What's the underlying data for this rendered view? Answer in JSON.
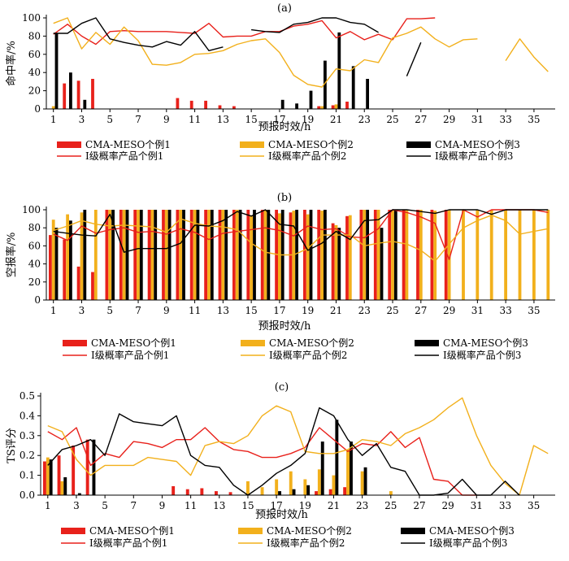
{
  "chart_data": [
    {
      "type": "bar",
      "title": "(a)",
      "xlabel": "预报时效/h",
      "ylabel": "命中率/%",
      "ylim": [
        0,
        100
      ],
      "yticks": [
        0,
        20,
        40,
        60,
        80,
        100
      ],
      "xticks": [
        1,
        3,
        5,
        7,
        9,
        11,
        13,
        15,
        17,
        19,
        21,
        23,
        25,
        27,
        29,
        31,
        33,
        35
      ],
      "x": [
        1,
        2,
        3,
        4,
        5,
        6,
        7,
        8,
        9,
        10,
        11,
        12,
        13,
        14,
        15,
        16,
        17,
        18,
        19,
        20,
        21,
        22,
        23,
        24,
        25,
        26,
        27,
        28,
        29,
        30,
        31,
        32,
        33,
        34,
        35,
        36
      ],
      "grid": false,
      "legend_position": "bottom",
      "bar_series": [
        {
          "name": "CMA-MESO个例1",
          "color": "#e8211b",
          "values": [
            null,
            28,
            31,
            33,
            null,
            null,
            null,
            null,
            null,
            12,
            9,
            9,
            4,
            3,
            null,
            null,
            null,
            null,
            null,
            3,
            4,
            8,
            null,
            null,
            null,
            null,
            null,
            null,
            null,
            null,
            null,
            null,
            null,
            null,
            null,
            null
          ]
        },
        {
          "name": "CMA-MESO个例2",
          "color": "#f2b01c",
          "values": [
            3,
            null,
            null,
            null,
            null,
            null,
            null,
            null,
            null,
            null,
            null,
            null,
            null,
            null,
            null,
            null,
            null,
            null,
            null,
            3,
            5,
            null,
            null,
            null,
            null,
            null,
            null,
            null,
            null,
            null,
            null,
            null,
            null,
            null,
            null,
            null
          ]
        },
        {
          "name": "CMA-MESO个例3",
          "color": "#000000",
          "values": [
            83,
            40,
            10,
            null,
            null,
            null,
            null,
            null,
            null,
            null,
            null,
            null,
            null,
            null,
            null,
            null,
            10,
            6,
            20,
            53,
            84,
            47,
            33,
            null,
            null,
            null,
            null,
            null,
            null,
            null,
            null,
            null,
            null,
            null,
            null,
            null
          ]
        }
      ],
      "line_series": [
        {
          "name": "I级概率产品个例1",
          "color": "#e8211b",
          "values": [
            82,
            93,
            80,
            71,
            85,
            86,
            85,
            85,
            85,
            84,
            83,
            94,
            79,
            80,
            80,
            85,
            85,
            91,
            93,
            97,
            78,
            85,
            76,
            82,
            76,
            99,
            99,
            100,
            null,
            null,
            null,
            null,
            null,
            null,
            null,
            null
          ]
        },
        {
          "name": "I级概率产品个例2",
          "color": "#f2b01c",
          "values": [
            94,
            100,
            66,
            84,
            71,
            90,
            75,
            49,
            48,
            51,
            60,
            61,
            64,
            71,
            75,
            77,
            62,
            37,
            27,
            24,
            44,
            42,
            54,
            51,
            78,
            83,
            90,
            77,
            68,
            76,
            77,
            null,
            53,
            77,
            57,
            41
          ]
        },
        {
          "name": "I级概率产品个例3",
          "color": "#000000",
          "values": [
            83,
            83,
            94,
            100,
            77,
            73,
            70,
            68,
            74,
            70,
            85,
            64,
            68,
            null,
            87,
            85,
            84,
            93,
            95,
            100,
            100,
            95,
            93,
            84,
            null,
            36,
            73,
            null,
            null,
            null,
            null,
            null,
            null,
            null,
            null,
            null
          ]
        }
      ]
    },
    {
      "type": "bar",
      "title": "(b)",
      "xlabel": "预报时效/h",
      "ylabel": "空报率/%",
      "ylim": [
        0,
        100
      ],
      "yticks": [
        0,
        20,
        40,
        60,
        80,
        100
      ],
      "xticks": [
        1,
        3,
        5,
        7,
        9,
        11,
        13,
        15,
        17,
        19,
        21,
        23,
        25,
        27,
        29,
        31,
        33,
        35
      ],
      "x": [
        1,
        2,
        3,
        4,
        5,
        6,
        7,
        8,
        9,
        10,
        11,
        12,
        13,
        14,
        15,
        16,
        17,
        18,
        19,
        20,
        21,
        22,
        23,
        24,
        25,
        26,
        27,
        28,
        29,
        30,
        31,
        32,
        33,
        34,
        35,
        36
      ],
      "grid": false,
      "legend_position": "bottom",
      "bar_series": [
        {
          "name": "CMA-MESO个例1",
          "color": "#e8211b",
          "values": [
            72,
            67,
            37,
            31,
            100,
            100,
            100,
            100,
            100,
            100,
            100,
            100,
            100,
            100,
            100,
            100,
            100,
            97,
            100,
            100,
            85,
            93,
            100,
            100,
            100,
            100,
            100,
            100,
            100,
            null,
            null,
            null,
            null,
            null,
            null,
            null
          ]
        },
        {
          "name": "CMA-MESO个例2",
          "color": "#f2b01c",
          "values": [
            89,
            95,
            97,
            100,
            100,
            100,
            100,
            100,
            100,
            100,
            100,
            100,
            100,
            100,
            94,
            100,
            96,
            99,
            95,
            99,
            83,
            94,
            100,
            100,
            100,
            100,
            100,
            99,
            100,
            100,
            100,
            100,
            100,
            100,
            100,
            100
          ]
        },
        {
          "name": "CMA-MESO个例3",
          "color": "#000000",
          "values": [
            80,
            88,
            100,
            null,
            100,
            100,
            100,
            100,
            100,
            100,
            100,
            100,
            100,
            100,
            100,
            100,
            100,
            100,
            100,
            100,
            80,
            null,
            100,
            80,
            100,
            null,
            null,
            null,
            null,
            null,
            null,
            null,
            null,
            null,
            null,
            null
          ]
        }
      ],
      "line_series": [
        {
          "name": "I级概率产品个例1",
          "color": "#e8211b",
          "values": [
            73,
            66,
            82,
            74,
            78,
            80,
            75,
            76,
            73,
            79,
            75,
            67,
            74,
            76,
            78,
            80,
            77,
            71,
            82,
            78,
            79,
            70,
            69,
            79,
            100,
            97,
            92,
            85,
            45,
            100,
            92,
            100,
            100,
            100,
            100,
            97
          ]
        },
        {
          "name": "I级概率产品个例2",
          "color": "#f2b01c",
          "values": [
            77,
            82,
            88,
            84,
            82,
            83,
            82,
            81,
            75,
            90,
            85,
            82,
            81,
            78,
            63,
            53,
            50,
            50,
            57,
            72,
            72,
            72,
            60,
            63,
            65,
            62,
            55,
            43,
            62,
            80,
            88,
            94,
            88,
            73,
            76,
            79
          ]
        },
        {
          "name": "I级概率产品个例3",
          "color": "#000000",
          "values": [
            76,
            74,
            72,
            71,
            95,
            53,
            57,
            57,
            57,
            63,
            83,
            82,
            88,
            98,
            93,
            100,
            84,
            82,
            55,
            63,
            76,
            67,
            88,
            89,
            100,
            100,
            98,
            96,
            100,
            100,
            100,
            95,
            100,
            100,
            100,
            100
          ]
        }
      ]
    },
    {
      "type": "bar",
      "title": "(c)",
      "xlabel": "预报时效/h",
      "ylabel": "TS评分",
      "ylim": [
        0,
        0.5
      ],
      "yticks": [
        0,
        0.1,
        0.2,
        0.3,
        0.4,
        0.5
      ],
      "xticks": [
        1,
        3,
        5,
        7,
        9,
        11,
        13,
        15,
        17,
        19,
        21,
        23,
        25,
        27,
        29,
        31,
        33,
        35
      ],
      "x": [
        1,
        2,
        3,
        4,
        5,
        6,
        7,
        8,
        9,
        10,
        11,
        12,
        13,
        14,
        15,
        16,
        17,
        18,
        19,
        20,
        21,
        22,
        23,
        24,
        25,
        26,
        27,
        28,
        29,
        30,
        31,
        32,
        33,
        34,
        35,
        36
      ],
      "grid": false,
      "legend_position": "bottom",
      "bar_series": [
        {
          "name": "CMA-MESO个例1",
          "color": "#e8211b",
          "values": [
            0.17,
            0.2,
            0.25,
            0.28,
            null,
            null,
            null,
            null,
            null,
            0.045,
            0.03,
            0.035,
            0.02,
            0.015,
            null,
            null,
            null,
            null,
            null,
            0.02,
            0.03,
            0.04,
            null,
            null,
            null,
            null,
            null,
            null,
            null,
            null,
            null,
            null,
            null,
            null,
            null,
            null
          ]
        },
        {
          "name": "CMA-MESO个例2",
          "color": "#f2b01c",
          "values": [
            0.19,
            0.07,
            null,
            null,
            null,
            null,
            null,
            null,
            null,
            null,
            null,
            null,
            null,
            null,
            0.07,
            0.04,
            0.08,
            0.12,
            0.08,
            0.13,
            0.1,
            0.23,
            0.12,
            null,
            0.02,
            null,
            null,
            null,
            null,
            null,
            null,
            null,
            null,
            null,
            null,
            null
          ]
        },
        {
          "name": "CMA-MESO个例3",
          "color": "#000000",
          "values": [
            0.18,
            0.09,
            0.01,
            0.28,
            null,
            null,
            null,
            null,
            null,
            null,
            null,
            null,
            null,
            null,
            null,
            null,
            0.02,
            0.03,
            0.05,
            0.27,
            0.38,
            0.27,
            0.14,
            null,
            null,
            null,
            null,
            null,
            null,
            null,
            null,
            null,
            null,
            null,
            null,
            null
          ]
        }
      ],
      "line_series": [
        {
          "name": "I级概率产品个例1",
          "color": "#e8211b",
          "values": [
            0.32,
            0.28,
            0.34,
            0.15,
            0.21,
            0.19,
            0.27,
            0.26,
            0.24,
            0.28,
            0.28,
            0.34,
            0.27,
            0.23,
            0.22,
            0.19,
            0.19,
            0.21,
            0.24,
            0.34,
            0.28,
            0.22,
            0.26,
            0.25,
            0.32,
            0.24,
            0.29,
            0.08,
            0.07,
            0.0,
            0.0,
            null,
            null,
            null,
            null,
            null
          ]
        },
        {
          "name": "I级概率产品个例2",
          "color": "#f2b01c",
          "values": [
            0.35,
            0.32,
            0.18,
            0.1,
            0.15,
            0.15,
            0.15,
            0.19,
            0.18,
            0.17,
            0.1,
            0.25,
            0.27,
            0.26,
            0.3,
            0.4,
            0.45,
            0.42,
            0.22,
            0.21,
            0.21,
            0.23,
            0.28,
            0.27,
            0.25,
            0.31,
            0.34,
            0.38,
            0.44,
            0.49,
            0.3,
            0.15,
            0.06,
            0.0,
            0.25,
            0.21
          ]
        },
        {
          "name": "I级概率产品个例3",
          "color": "#000000",
          "values": [
            0.15,
            0.23,
            0.25,
            0.28,
            0.2,
            0.41,
            0.37,
            0.36,
            0.35,
            0.4,
            0.2,
            0.15,
            0.14,
            0.05,
            0.0,
            0.05,
            0.11,
            0.15,
            0.21,
            0.44,
            0.4,
            0.28,
            0.2,
            0.26,
            0.14,
            0.12,
            0.0,
            0.0,
            0.01,
            0.08,
            0.0,
            0.0,
            0.07,
            0.0,
            null,
            null
          ]
        }
      ]
    }
  ]
}
